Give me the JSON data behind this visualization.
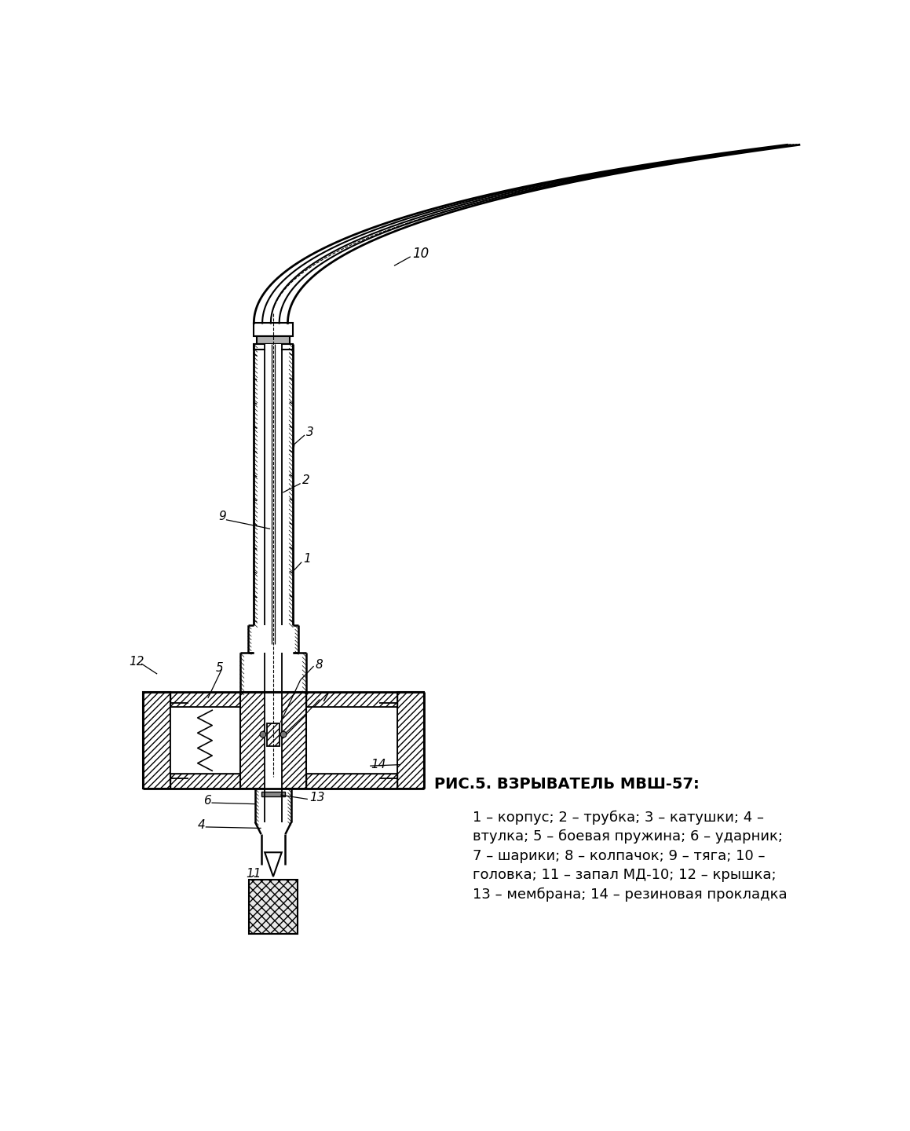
{
  "title": "РИС.5. ВЗРЫВАТЕЛЬ МВШ-57:",
  "caption_lines": [
    "1 – корпус; 2 – трубка; 3 – катушки; 4 –",
    "втулка; 5 – боевая пружина; 6 – ударник;",
    "7 – шарики; 8 – колпачок; 9 – тяга; 10 –",
    "головка; 11 – запал МД-10; 12 – крышка;",
    "13 – мембрана; 14 – резиновая прокладка"
  ],
  "bg_color": "#ffffff",
  "text_color": "#000000",
  "title_fontsize": 14,
  "caption_fontsize": 13,
  "fig_width": 11.59,
  "fig_height": 14.4,
  "dpi": 100
}
